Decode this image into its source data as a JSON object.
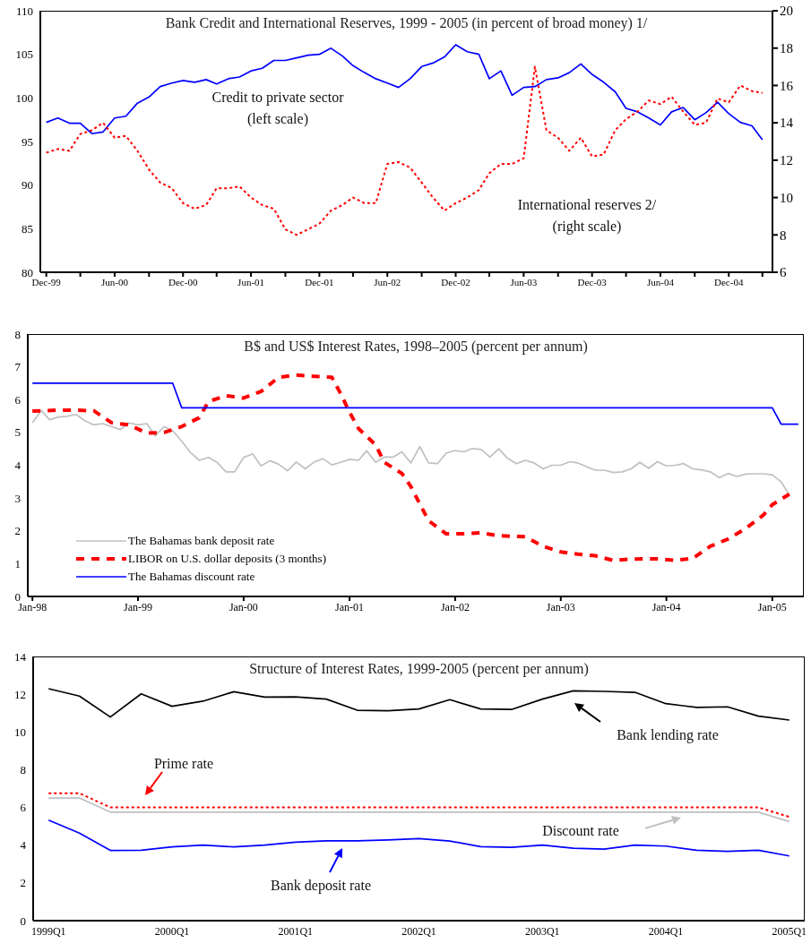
{
  "chart_data": [
    {
      "type": "line",
      "title": "Bank Credit and International Reserves, 1999 - 2005 (in percent of broad money) 1/",
      "marker": "none",
      "x": [
        "1999-12",
        "2000-01",
        "2000-02",
        "2000-03",
        "2000-04",
        "2000-05",
        "2000-06",
        "2000-07",
        "2000-08",
        "2000-09",
        "2000-10",
        "2000-11",
        "2000-12",
        "2001-01",
        "2001-02",
        "2001-03",
        "2001-04",
        "2001-05",
        "2001-06",
        "2001-07",
        "2001-08",
        "2001-09",
        "2001-10",
        "2001-11",
        "2001-12",
        "2002-01",
        "2002-02",
        "2002-03",
        "2002-04",
        "2002-05",
        "2002-06",
        "2002-07",
        "2002-08",
        "2002-09",
        "2002-10",
        "2002-11",
        "2002-12",
        "2003-01",
        "2003-02",
        "2003-03",
        "2003-04",
        "2003-05",
        "2003-06",
        "2003-07",
        "2003-08",
        "2003-09",
        "2003-10",
        "2003-11",
        "2003-12",
        "2004-01",
        "2004-02",
        "2004-03",
        "2004-04",
        "2004-05",
        "2004-06",
        "2004-07",
        "2004-08",
        "2004-09",
        "2004-10",
        "2004-11",
        "2004-12",
        "2005-01",
        "2005-02",
        "2005-03"
      ],
      "xlim": [
        "1999-11-15",
        "2005-03-28"
      ],
      "xticks": [
        {
          "value": "1999-12",
          "label": "Dec-99"
        },
        {
          "value": "2000-03",
          "label": null
        },
        {
          "value": "2000-06",
          "label": "Jun-00"
        },
        {
          "value": "2000-09",
          "label": null
        },
        {
          "value": "2000-12",
          "label": "Dec-00"
        },
        {
          "value": "2001-03",
          "label": null
        },
        {
          "value": "2001-06",
          "label": "Jun-01"
        },
        {
          "value": "2001-09",
          "label": null
        },
        {
          "value": "2001-12",
          "label": "Dec-01"
        },
        {
          "value": "2002-03",
          "label": null
        },
        {
          "value": "2002-06",
          "label": "Jun-02"
        },
        {
          "value": "2002-09",
          "label": null
        },
        {
          "value": "2002-12",
          "label": "Dec-02"
        },
        {
          "value": "2003-03",
          "label": null
        },
        {
          "value": "2003-06",
          "label": "Jun-03"
        },
        {
          "value": "2003-09",
          "label": null
        },
        {
          "value": "2003-12",
          "label": "Dec-03"
        },
        {
          "value": "2004-03",
          "label": null
        },
        {
          "value": "2004-06",
          "label": "Jun-04"
        },
        {
          "value": "2004-09",
          "label": null
        },
        {
          "value": "2004-12",
          "label": "Dec-04"
        },
        {
          "value": "2005-03",
          "label": null
        }
      ],
      "ylim": [
        80,
        110
      ],
      "yticks": [
        80,
        85,
        90,
        95,
        100,
        105,
        110
      ],
      "y2lim": [
        6,
        20
      ],
      "y2ticks": [
        6,
        8,
        10,
        12,
        14,
        16,
        18,
        20
      ],
      "series": [
        {
          "name": "Credit to private sector (left scale)",
          "color": "#0000ff",
          "line_style": "solid",
          "values": [
            97.2,
            97.7,
            97.1,
            97.1,
            95.9,
            96.1,
            97.7,
            97.9,
            99.4,
            100.1,
            101.3,
            101.7,
            102.0,
            101.8,
            102.1,
            101.6,
            102.2,
            102.4,
            103.1,
            103.4,
            104.3,
            104.3,
            104.6,
            104.9,
            105.0,
            105.7,
            104.8,
            103.7,
            102.9,
            102.2,
            101.7,
            101.2,
            102.2,
            103.6,
            104.0,
            104.7,
            106.1,
            105.3,
            105.0,
            102.2,
            103.1,
            100.3,
            101.2,
            101.3,
            102.1,
            102.3,
            102.9,
            103.9,
            102.7,
            101.8,
            100.7,
            98.8,
            98.4,
            97.7,
            96.9,
            98.4,
            98.9,
            97.5,
            98.3,
            99.5,
            98.2,
            97.2,
            96.8,
            95.2
          ]
        },
        {
          "name": "International reserves 2/ (right scale)",
          "color": "#ff0000",
          "line_style": "dotted",
          "axis": "y2",
          "values": [
            12.4,
            12.6,
            12.5,
            13.4,
            13.6,
            14.0,
            13.2,
            13.3,
            12.5,
            11.5,
            10.8,
            10.5,
            9.7,
            9.4,
            9.6,
            10.5,
            10.5,
            10.6,
            10.0,
            9.6,
            9.4,
            8.3,
            8.0,
            8.3,
            8.6,
            9.3,
            9.6,
            10.0,
            9.7,
            9.7,
            11.8,
            11.9,
            11.6,
            10.8,
            10.0,
            9.3,
            9.7,
            10.0,
            10.4,
            11.3,
            11.8,
            11.8,
            12.1,
            17.0,
            13.6,
            13.2,
            12.5,
            13.2,
            12.2,
            12.3,
            13.6,
            14.2,
            14.6,
            15.2,
            15.0,
            15.4,
            14.6,
            13.9,
            14.0,
            15.3,
            15.1,
            16.0,
            15.7,
            15.6
          ]
        }
      ]
    },
    {
      "type": "line",
      "title": "B$ and US$ Interest Rates, 1998–2005 (percent per annum)",
      "marker": "none",
      "legend": "bottom left",
      "x": [
        "1998-01",
        "1998-02",
        "1998-03",
        "1998-04",
        "1998-05",
        "1998-06",
        "1998-07",
        "1998-08",
        "1998-09",
        "1998-10",
        "1998-11",
        "1998-12",
        "1999-01",
        "1999-02",
        "1999-03",
        "1999-04",
        "1999-05",
        "1999-06",
        "1999-07",
        "1999-08",
        "1999-09",
        "1999-10",
        "1999-11",
        "1999-12",
        "2000-01",
        "2000-02",
        "2000-03",
        "2000-04",
        "2000-05",
        "2000-06",
        "2000-07",
        "2000-08",
        "2000-09",
        "2000-10",
        "2000-11",
        "2000-12",
        "2001-01",
        "2001-02",
        "2001-03",
        "2001-04",
        "2001-05",
        "2001-06",
        "2001-07",
        "2001-08",
        "2001-09",
        "2001-10",
        "2001-11",
        "2001-12",
        "2002-01",
        "2002-02",
        "2002-03",
        "2002-04",
        "2002-05",
        "2002-06",
        "2002-07",
        "2002-08",
        "2002-09",
        "2002-10",
        "2002-11",
        "2002-12",
        "2003-01",
        "2003-02",
        "2003-03",
        "2003-04",
        "2003-05",
        "2003-06",
        "2003-07",
        "2003-08",
        "2003-09",
        "2003-10",
        "2003-11",
        "2003-12",
        "2004-01",
        "2004-02",
        "2004-03",
        "2004-04",
        "2004-05",
        "2004-06",
        "2004-07",
        "2004-08",
        "2004-09",
        "2004-10",
        "2004-11",
        "2004-12",
        "2005-01",
        "2005-02",
        "2005-03"
      ],
      "xlim": [
        "1997-12-16",
        "2005-04-20"
      ],
      "xticks": [
        {
          "value": "1998-01",
          "label": "Jan-98"
        },
        {
          "value": "1999-01",
          "label": "Jan-99"
        },
        {
          "value": "2000-01",
          "label": "Jan-00"
        },
        {
          "value": "2001-01",
          "label": "Jan-01"
        },
        {
          "value": "2002-01",
          "label": "Jan-02"
        },
        {
          "value": "2003-01",
          "label": "Jan-03"
        },
        {
          "value": "2004-01",
          "label": "Jan-04"
        },
        {
          "value": "2005-01",
          "label": "Jan-05"
        }
      ],
      "ylim": [
        0,
        8
      ],
      "yticks": [
        0,
        1,
        2,
        3,
        4,
        5,
        6,
        7,
        8
      ],
      "series": [
        {
          "name": "The Bahamas bank deposit rate",
          "color": "#c0c0c0",
          "line_style": "solid",
          "values": [
            5.3,
            5.67,
            5.39,
            5.47,
            5.49,
            5.55,
            5.36,
            5.23,
            5.27,
            5.18,
            5.09,
            5.29,
            5.23,
            5.27,
            4.89,
            5.18,
            5.05,
            4.73,
            4.39,
            4.15,
            4.24,
            4.09,
            3.8,
            3.8,
            4.24,
            4.35,
            3.98,
            4.14,
            4.03,
            3.83,
            4.1,
            3.89,
            4.1,
            4.2,
            4.01,
            4.09,
            4.18,
            4.15,
            4.44,
            4.09,
            4.25,
            4.25,
            4.41,
            4.07,
            4.57,
            4.07,
            4.05,
            4.37,
            4.45,
            4.41,
            4.51,
            4.48,
            4.25,
            4.5,
            4.21,
            4.05,
            4.15,
            4.07,
            3.89,
            4.0,
            4.0,
            4.11,
            4.07,
            3.95,
            3.85,
            3.85,
            3.78,
            3.8,
            3.89,
            4.09,
            3.91,
            4.11,
            3.98,
            4.0,
            4.05,
            3.89,
            3.86,
            3.8,
            3.62,
            3.75,
            3.66,
            3.73,
            3.74,
            3.74,
            3.71,
            3.49,
            3.09
          ]
        },
        {
          "name": "LIBOR on U.S. dollar deposits (3 months)",
          "color": "#ff0000",
          "line_style": "dashed",
          "x": [
            "1998-01",
            "1998-04",
            "1998-06",
            "1998-08",
            "1998-10",
            "1998-12",
            "1999-02",
            "1999-04",
            "1999-06",
            "1999-08",
            "1999-09",
            "1999-11",
            "2000-01",
            "2000-03",
            "2000-05",
            "2000-07",
            "2000-09",
            "2000-11",
            "2000-12",
            "2001-01",
            "2001-02",
            "2001-04",
            "2001-05",
            "2001-07",
            "2001-08",
            "2001-09",
            "2001-10",
            "2001-12",
            "2002-02",
            "2002-04",
            "2002-06",
            "2002-09",
            "2002-11",
            "2003-01",
            "2003-03",
            "2003-05",
            "2003-07",
            "2003-09",
            "2003-12",
            "2004-02",
            "2004-04",
            "2004-06",
            "2004-08",
            "2004-10",
            "2004-12",
            "2005-01",
            "2005-03"
          ],
          "values": [
            5.65,
            5.68,
            5.68,
            5.66,
            5.3,
            5.23,
            4.98,
            5.0,
            5.18,
            5.45,
            5.94,
            6.12,
            6.05,
            6.25,
            6.68,
            6.75,
            6.71,
            6.68,
            6.19,
            5.62,
            5.12,
            4.62,
            4.09,
            3.75,
            3.35,
            2.82,
            2.31,
            1.91,
            1.91,
            1.94,
            1.85,
            1.82,
            1.53,
            1.36,
            1.29,
            1.24,
            1.1,
            1.14,
            1.15,
            1.1,
            1.16,
            1.53,
            1.75,
            2.07,
            2.48,
            2.8,
            3.12
          ]
        },
        {
          "name": "The Bahamas discount rate",
          "color": "#0000ff",
          "line_style": "solid",
          "x": [
            "1998-01",
            "1999-05",
            "1999-06",
            "2005-01",
            "2005-02",
            "2005-04"
          ],
          "values": [
            6.5,
            6.5,
            5.75,
            5.75,
            5.25,
            5.25
          ]
        }
      ]
    },
    {
      "type": "line",
      "title": "Structure of Interest Rates, 1999-2005 (percent per annum)",
      "marker": "none",
      "categories": [
        "1999Q1",
        null,
        null,
        null,
        "2000Q1",
        null,
        null,
        null,
        "2001Q1",
        null,
        null,
        null,
        "2002Q1",
        null,
        null,
        null,
        "2003Q1",
        null,
        null,
        null,
        "2004Q1",
        null,
        null,
        null,
        "2005Q1"
      ],
      "ylim": [
        0,
        14
      ],
      "yticks": [
        0,
        2,
        4,
        6,
        8,
        10,
        12,
        14
      ],
      "series": [
        {
          "name": "Bank lending rate",
          "color": "#000000",
          "line_style": "solid",
          "values": [
            12.29,
            11.9,
            10.79,
            12.02,
            11.36,
            11.63,
            12.13,
            11.85,
            11.86,
            11.74,
            11.15,
            11.12,
            11.22,
            11.71,
            11.22,
            11.19,
            11.74,
            12.18,
            12.15,
            12.1,
            11.5,
            11.3,
            11.33,
            10.84,
            10.63
          ]
        },
        {
          "name": "Prime rate",
          "color": "#ff0000",
          "line_style": "dotted",
          "values": [
            6.75,
            6.75,
            6.0,
            6.0,
            6.0,
            6.0,
            6.0,
            6.0,
            6.0,
            6.0,
            6.0,
            6.0,
            6.0,
            6.0,
            6.0,
            6.0,
            6.0,
            6.0,
            6.0,
            6.0,
            6.0,
            6.0,
            6.0,
            6.0,
            5.5
          ]
        },
        {
          "name": "Discount rate",
          "color": "#c0c0c0",
          "line_style": "solid",
          "values": [
            6.5,
            6.5,
            5.75,
            5.75,
            5.75,
            5.75,
            5.75,
            5.75,
            5.75,
            5.75,
            5.75,
            5.75,
            5.75,
            5.75,
            5.75,
            5.75,
            5.75,
            5.75,
            5.75,
            5.75,
            5.75,
            5.75,
            5.75,
            5.75,
            5.25
          ]
        },
        {
          "name": "Bank deposit rate",
          "color": "#0000ff",
          "line_style": "solid",
          "values": [
            5.33,
            4.64,
            3.72,
            3.73,
            3.91,
            4.0,
            3.91,
            4.0,
            4.16,
            4.23,
            4.23,
            4.28,
            4.35,
            4.22,
            3.92,
            3.89,
            4.0,
            3.84,
            3.79,
            4.0,
            3.95,
            3.73,
            3.67,
            3.73,
            3.43
          ]
        }
      ]
    }
  ]
}
